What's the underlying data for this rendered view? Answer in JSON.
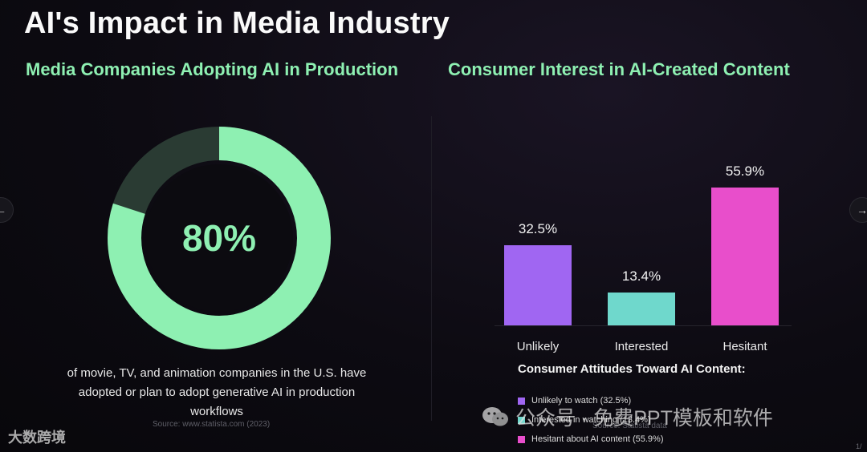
{
  "slide": {
    "title": "AI's Impact in Media Industry",
    "left_heading": "Media Companies Adopting AI in Production",
    "right_heading": "Consumer Interest in AI-Created Content"
  },
  "donut": {
    "value_label": "80%",
    "percent": 80,
    "caption": "of movie, TV, and animation companies in the U.S. have adopted or plan to adopt generative AI in production workflows",
    "source": "Source: www.statista.com (2023)",
    "fill_color": "#8ef0b2",
    "track_color": "#2a3b33",
    "center_color": "#0c0b10"
  },
  "chart_data": {
    "type": "bar",
    "title": "Consumer Interest in AI-Created Content",
    "categories": [
      "Unlikely",
      "Interested",
      "Hesitant"
    ],
    "values": [
      32.5,
      13.4,
      55.9
    ],
    "value_labels": [
      "32.5%",
      "13.4%",
      "55.9%"
    ],
    "colors": [
      "#a066f2",
      "#6fd8cc",
      "#e84ecb"
    ],
    "ylim": [
      0,
      60
    ],
    "xlabel": "",
    "ylabel": "",
    "legend_title": "Consumer Attitudes Toward AI Content:",
    "legend": [
      "Unlikely to watch (32.5%)",
      "Interested in watching (13.4%)",
      "Hesitant about AI content (55.9%)"
    ],
    "source": "Source: Statista data"
  },
  "nav": {
    "prev_icon": "arrow-left-icon",
    "next_icon": "arrow-right-icon",
    "prev_glyph": "←",
    "next_glyph": "→"
  },
  "watermark": {
    "brand": "大数跨境",
    "channel": "公众号 · 免费PPT模板和软件"
  },
  "page_indicator": "1/"
}
